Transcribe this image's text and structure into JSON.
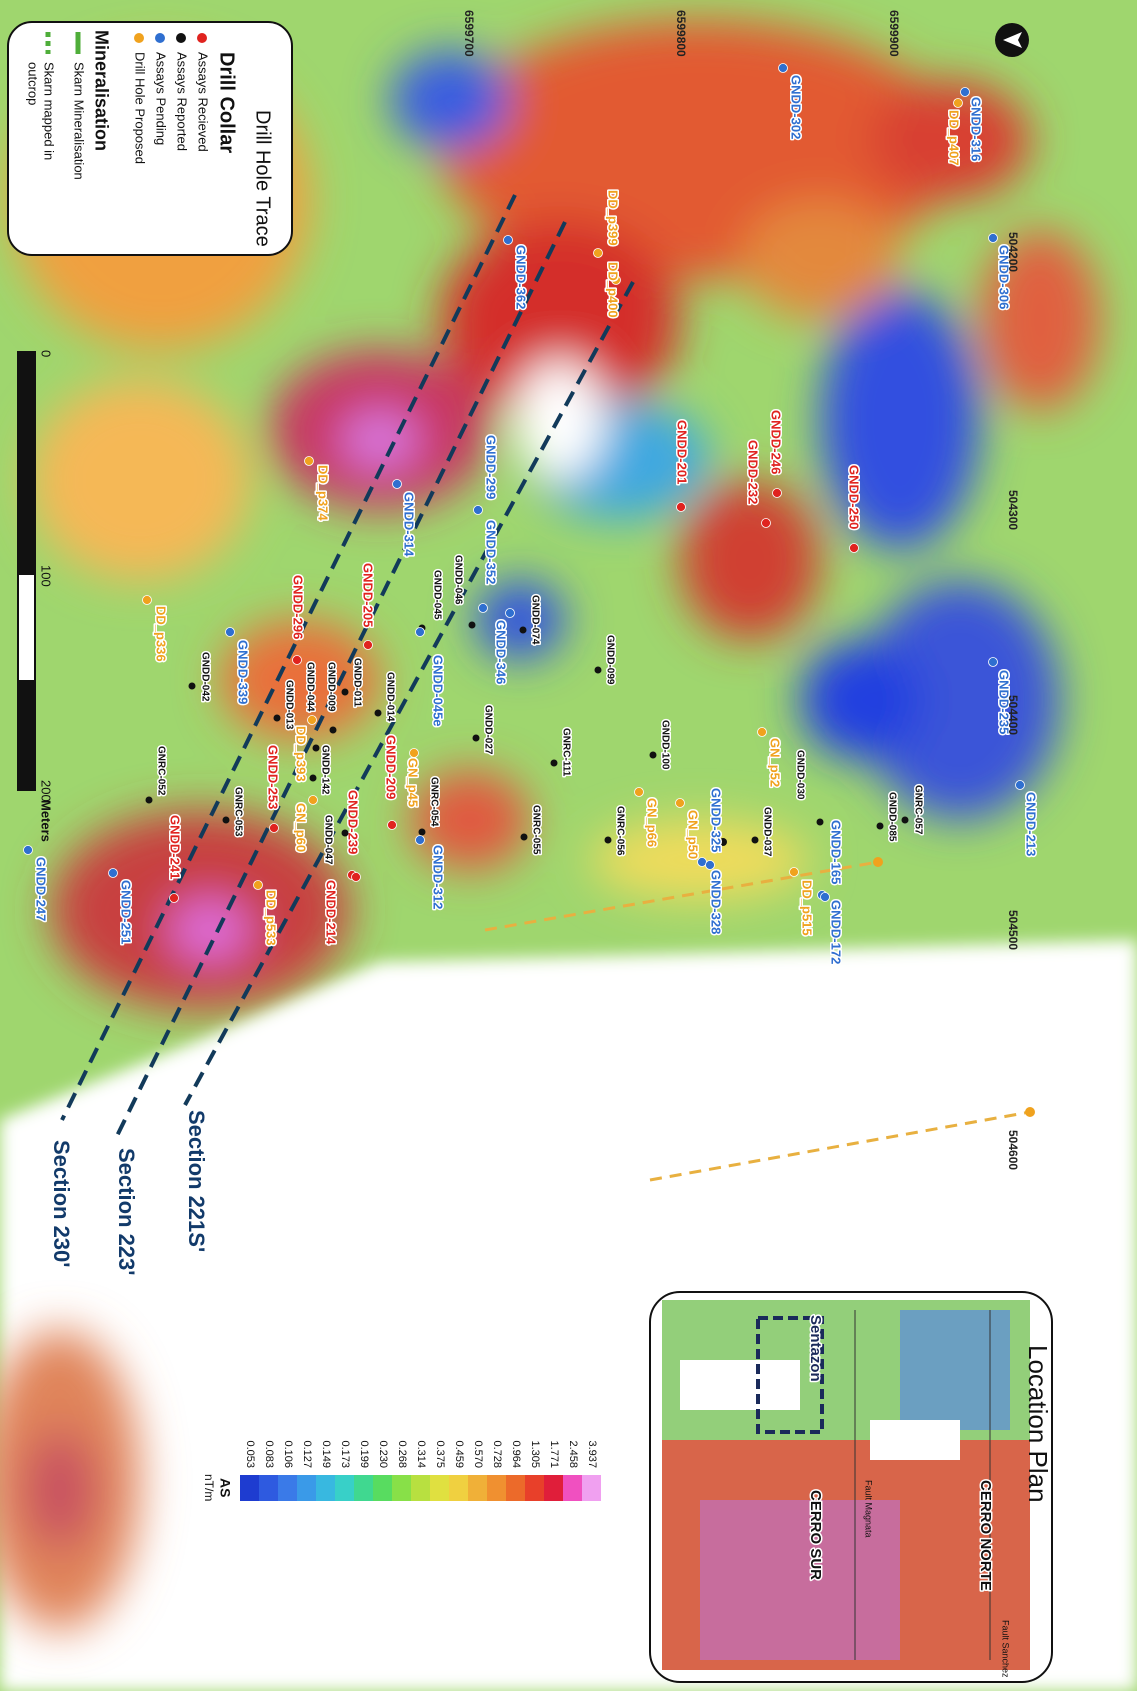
{
  "legend": {
    "title": "Drill Hole Trace",
    "collar_heading": "Drill Collar",
    "mineralisation_heading": "Mineralisation",
    "mineralisation_items": [
      {
        "label": [
          "Skarn Mineralisation"
        ],
        "style": "solid"
      },
      {
        "label": [
          "Skarn mapped in",
          "outcrop"
        ],
        "style": "dotted"
      }
    ]
  },
  "collar_groups": [
    {
      "label": "Assays Recieved",
      "color": "#e0231f",
      "holes": [
        "GNDD-246",
        "GNDD-232",
        "GNDD-250",
        "GNDD-201",
        "GNDD-205",
        "GNDD-296",
        "GNDD-209",
        "GNDD-253",
        "GNDD-239",
        "GNDD-214",
        "GNDD-241"
      ]
    },
    {
      "label": "Assays Reported",
      "color": "#111111",
      "holes": [
        "GNDD-046",
        "GNDD-045",
        "GNDD-074",
        "GNDD-099",
        "GNDD-042",
        "GNDD-011",
        "GNDD-009",
        "GNDD-044",
        "GNDD-013",
        "GNDD-014",
        "GNDD-027",
        "GNDD-100",
        "GNRC-111",
        "GNDD-142",
        "GNDD-047",
        "GNDD-030",
        "GNRC-057",
        "GNDD-085",
        "GNDD-037",
        "GNRC-052",
        "GNRC-053",
        "GNRC-054",
        "GNRC-055",
        "GNRC-056"
      ]
    },
    {
      "label": "Assays Pending",
      "color": "#2f6fd0",
      "holes": [
        "GNDD-302",
        "GNDD-316",
        "GNDD-306",
        "GNDD-362",
        "GNDD-299",
        "GNDD-352",
        "GNDD-314",
        "GNDD-346",
        "GNDD-045e",
        "GNDD-339",
        "GNDD-235",
        "GNDD-213",
        "GNDD-325",
        "GNDD-328",
        "GNDD-165",
        "GNDD-172",
        "GNDD-312",
        "GNDD-251",
        "GNDD-247"
      ]
    },
    {
      "label": "Drill Hole Proposed",
      "color": "#f0a21e",
      "holes": [
        "DD_p407",
        "DD_p399",
        "DD_p400",
        "DD_p374",
        "DD_p336",
        "GN_p52",
        "GN_p45",
        "GN_p66",
        "GN_p50",
        "DD_p393",
        "GN_p60",
        "DD_p515",
        "DD_p533"
      ]
    }
  ],
  "grid": {
    "northings": [
      "6599700",
      "6599800",
      "6599900"
    ],
    "eastings": [
      "504200",
      "504300",
      "504400",
      "504500",
      "504600"
    ]
  },
  "scale_bar": {
    "labels": [
      "0",
      "100",
      "200"
    ],
    "unit": "Meters"
  },
  "sections": [
    "Section 221S'",
    "Section 223'",
    "Section 230'"
  ],
  "location_plan": {
    "title": "Location Plan",
    "labels": [
      "CERRO NORTE",
      "CERRO SUR",
      "Sentazon",
      "Fault Magnata",
      "Fault Sanchez"
    ]
  },
  "color_scale": {
    "title": "AS",
    "unit": "nT/m",
    "values": [
      "0.053",
      "0.083",
      "0.106",
      "0.127",
      "0.149",
      "0.173",
      "0.199",
      "0.230",
      "0.268",
      "0.314",
      "0.375",
      "0.459",
      "0.570",
      "0.728",
      "0.964",
      "1.305",
      "1.771",
      "2.458",
      "3.937"
    ]
  }
}
